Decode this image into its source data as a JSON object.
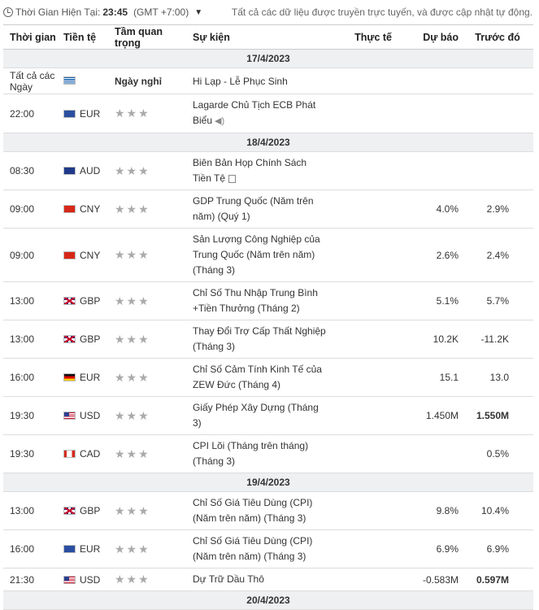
{
  "topbar": {
    "label": "Thời Gian Hiện Tại:",
    "time": "23:45",
    "tz": "(GMT +7:00)",
    "notice": "Tất cả các dữ liệu được truyền trực tuyến, và được cập nhật tự động."
  },
  "headers": {
    "time": "Thời gian",
    "currency": "Tiền tệ",
    "importance": "Tầm quan trọng",
    "event": "Sự kiện",
    "actual": "Thực tế",
    "forecast": "Dự báo",
    "previous": "Trước đó"
  },
  "dates": [
    "17/4/2023",
    "18/4/2023",
    "19/4/2023",
    "20/4/2023"
  ],
  "holiday": {
    "time": "Tất cả các Ngày",
    "importance": "Ngày nghỉ",
    "event": "Hi Lạp - Lễ Phục Sinh"
  },
  "rows": [
    {
      "time": "22:00",
      "cur": "EUR",
      "event": "Lagarde Chủ Tịch ECB Phát Biểu",
      "actual": "",
      "forecast": "",
      "previous": ""
    },
    {
      "time": "08:30",
      "cur": "AUD",
      "event": "Biên Bản Họp Chính Sách Tiền Tệ",
      "actual": "",
      "forecast": "",
      "previous": ""
    },
    {
      "time": "09:00",
      "cur": "CNY",
      "event": "GDP Trung Quốc (Năm trên năm) (Quý 1)",
      "actual": "",
      "forecast": "4.0%",
      "previous": "2.9%"
    },
    {
      "time": "09:00",
      "cur": "CNY",
      "event": "Sản Lượng Công Nghiệp của Trung Quốc (Năm trên năm) (Tháng 3)",
      "actual": "",
      "forecast": "2.6%",
      "previous": "2.4%"
    },
    {
      "time": "13:00",
      "cur": "GBP",
      "event": "Chỉ Số Thu Nhập Trung Bình +Tiền Thưởng (Tháng 2)",
      "actual": "",
      "forecast": "5.1%",
      "previous": "5.7%"
    },
    {
      "time": "13:00",
      "cur": "GBP",
      "event": "Thay Đổi Trợ Cấp Thất Nghiệp (Tháng 3)",
      "actual": "",
      "forecast": "10.2K",
      "previous": "-11.2K"
    },
    {
      "time": "16:00",
      "cur": "EUR",
      "event": "Chỉ Số Cảm Tính Kinh Tế của ZEW Đức (Tháng 4)",
      "actual": "",
      "forecast": "15.1",
      "previous": "13.0"
    },
    {
      "time": "19:30",
      "cur": "USD",
      "event": "Giấy Phép Xây Dựng (Tháng 3)",
      "actual": "",
      "forecast": "1.450M",
      "previous": "1.550M"
    },
    {
      "time": "19:30",
      "cur": "CAD",
      "event": "CPI Lõi (Tháng trên tháng) (Tháng 3)",
      "actual": "",
      "forecast": "",
      "previous": "0.5%"
    },
    {
      "time": "13:00",
      "cur": "GBP",
      "event": "Chỉ Số Giá Tiêu Dùng (CPI) (Năm trên năm) (Tháng 3)",
      "actual": "",
      "forecast": "9.8%",
      "previous": "10.4%"
    },
    {
      "time": "16:00",
      "cur": "EUR",
      "event": "Chỉ Số Giá Tiêu Dùng (CPI) (Năm trên năm) (Tháng 3)",
      "actual": "",
      "forecast": "6.9%",
      "previous": "6.9%"
    },
    {
      "time": "21:30",
      "cur": "USD",
      "event": "Dự Trữ Dầu Thô",
      "actual": "",
      "forecast": "-0.583M",
      "previous": "0.597M"
    }
  ]
}
